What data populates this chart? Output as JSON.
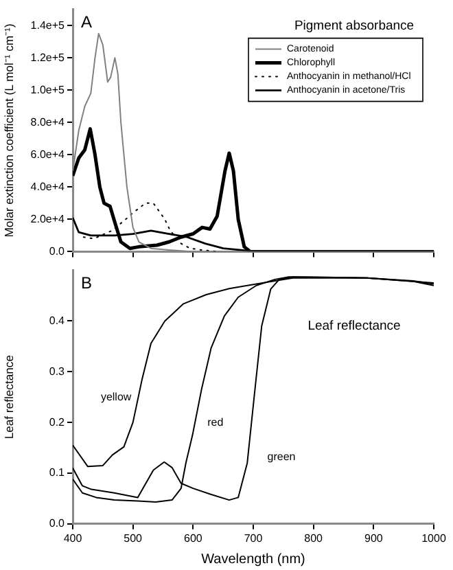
{
  "chart_data": [
    {
      "type": "line",
      "title": "Pigment absorbance",
      "ylabel": "Molar extinction coefficient (L mol⁻¹ cm⁻¹)",
      "annotations": [
        "A"
      ],
      "xlim": [
        400,
        1000
      ],
      "ylim": [
        0,
        150000
      ],
      "xticks": [
        400,
        500,
        600,
        700,
        800,
        900,
        1000
      ],
      "yticks": [
        {
          "value": 0,
          "label": "0.0"
        },
        {
          "value": 20000,
          "label": "2.0e+4"
        },
        {
          "value": 40000,
          "label": "4.0e+4"
        },
        {
          "value": 60000,
          "label": "6.0e+4"
        },
        {
          "value": 80000,
          "label": "8.0e+4"
        },
        {
          "value": 100000,
          "label": "1.0e+5"
        },
        {
          "value": 120000,
          "label": "1.2e+5"
        },
        {
          "value": 140000,
          "label": "1.4e+5"
        }
      ],
      "tick_labels": "y",
      "legend": "top right",
      "grid": false,
      "series": [
        {
          "name": "Carotenoid",
          "color": "#808080",
          "x": [
            400,
            410,
            420,
            430,
            437,
            443,
            450,
            458,
            463,
            470,
            475,
            480,
            490,
            500,
            510,
            530,
            560,
            600,
            1000
          ],
          "values": [
            50000,
            75000,
            90000,
            98000,
            120000,
            135000,
            128000,
            105000,
            108000,
            120000,
            110000,
            80000,
            40000,
            15000,
            6000,
            2000,
            1000,
            0,
            0
          ]
        },
        {
          "name": "Chlorophyll",
          "color": "#000000",
          "x": [
            400,
            410,
            420,
            429,
            437,
            445,
            452,
            462,
            470,
            480,
            495,
            510,
            540,
            560,
            580,
            600,
            615,
            628,
            640,
            653,
            660,
            667,
            675,
            685,
            695,
            1000
          ],
          "values": [
            47000,
            58000,
            63000,
            76000,
            60000,
            40000,
            30000,
            28000,
            18000,
            6000,
            2000,
            3000,
            4000,
            6000,
            9000,
            11000,
            15000,
            14000,
            22000,
            50000,
            61000,
            50000,
            20000,
            3000,
            0,
            0
          ]
        },
        {
          "name": "Anthocyanin in methanol/HCl",
          "color": "#000000",
          "line_style": "dotted",
          "x": [
            418,
            435,
            465,
            488,
            500,
            521,
            534,
            553,
            562,
            580,
            595,
            615,
            641
          ],
          "values": [
            9000,
            8000,
            13000,
            20000,
            24000,
            30000,
            30000,
            20000,
            13000,
            5000,
            2000,
            1000,
            0
          ]
        },
        {
          "name": "Anthocyanin in acetone/Tris",
          "color": "#000000",
          "x": [
            400,
            410,
            430,
            470,
            500,
            530,
            560,
            590,
            620,
            650,
            680,
            700,
            1000
          ],
          "values": [
            21000,
            12000,
            10000,
            10000,
            11000,
            13000,
            11000,
            9000,
            5000,
            2000,
            1000,
            0,
            0
          ]
        }
      ]
    },
    {
      "type": "line",
      "title": "Leaf reflectance",
      "xlabel": "Wavelength (nm)",
      "ylabel": "Leaf reflectance",
      "annotations": [
        "B"
      ],
      "xlim": [
        400,
        1000
      ],
      "ylim": [
        0,
        0.5
      ],
      "xticks": [
        400,
        500,
        600,
        700,
        800,
        900,
        1000
      ],
      "yticks": [
        {
          "value": 0,
          "label": "0.0"
        },
        0.1,
        0.2,
        0.3,
        0.4
      ],
      "grid": false,
      "series": [
        {
          "name": "yellow",
          "color": "#000000",
          "x": [
            400,
            425,
            450,
            466,
            485,
            500,
            515,
            530,
            553,
            584,
            622,
            660,
            690,
            736,
            766,
            889,
            966,
            1000
          ],
          "values": [
            0.155,
            0.113,
            0.115,
            0.136,
            0.152,
            0.2,
            0.284,
            0.356,
            0.4,
            0.434,
            0.452,
            0.464,
            0.47,
            0.479,
            0.485,
            0.485,
            0.479,
            0.473
          ]
        },
        {
          "name": "red",
          "color": "#000000",
          "x": [
            400,
            416,
            439,
            469,
            508,
            538,
            565,
            580,
            588,
            599,
            614,
            630,
            652,
            675,
            705,
            736,
            759,
            889,
            966,
            1000
          ],
          "values": [
            0.088,
            0.061,
            0.052,
            0.047,
            0.045,
            0.043,
            0.047,
            0.07,
            0.12,
            0.175,
            0.265,
            0.347,
            0.41,
            0.447,
            0.47,
            0.482,
            0.487,
            0.485,
            0.478,
            0.47
          ]
        },
        {
          "name": "green",
          "color": "#000000",
          "x": [
            400,
            416,
            431,
            469,
            508,
            519,
            534,
            552,
            565,
            580,
            600,
            630,
            660,
            675,
            690,
            702,
            714,
            729,
            744,
            766,
            889,
            1000
          ],
          "values": [
            0.11,
            0.075,
            0.068,
            0.061,
            0.052,
            0.075,
            0.106,
            0.122,
            0.111,
            0.08,
            0.07,
            0.058,
            0.047,
            0.052,
            0.12,
            0.256,
            0.39,
            0.463,
            0.483,
            0.487,
            0.485,
            0.475
          ]
        }
      ]
    }
  ]
}
